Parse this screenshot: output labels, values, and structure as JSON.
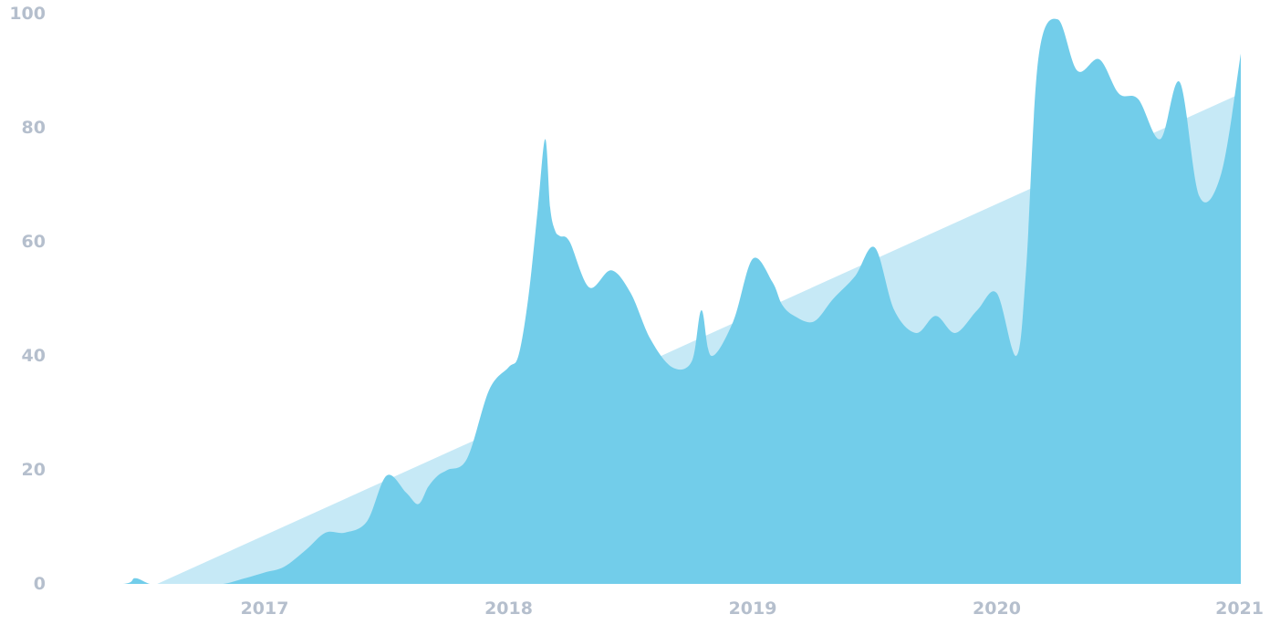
{
  "chart_data": {
    "type": "area",
    "title": "",
    "xlabel": "",
    "ylabel": "",
    "grid": false,
    "legend": "none",
    "xlim": [
      2016.17,
      2021.0
    ],
    "ylim": [
      0,
      100
    ],
    "x_ticks": [
      {
        "value": 2017,
        "label": "2017"
      },
      {
        "value": 2018,
        "label": "2018"
      },
      {
        "value": 2019,
        "label": "2019"
      },
      {
        "value": 2020,
        "label": "2020"
      },
      {
        "value": 2021,
        "label": "2021"
      }
    ],
    "y_ticks": [
      {
        "value": 0,
        "label": "0"
      },
      {
        "value": 20,
        "label": "20"
      },
      {
        "value": 40,
        "label": "40"
      },
      {
        "value": 60,
        "label": "60"
      },
      {
        "value": 80,
        "label": "80"
      },
      {
        "value": 100,
        "label": "100"
      }
    ],
    "series": [
      {
        "role": "trend",
        "color": "#c6e9f6",
        "x": [
          2016.56,
          2021.0
        ],
        "y": [
          0,
          86
        ]
      },
      {
        "role": "values",
        "color": "#72cdea",
        "x": [
          2016.17,
          2016.42,
          2016.47,
          2016.53,
          2016.58,
          2016.67,
          2016.75,
          2016.83,
          2016.92,
          2017.0,
          2017.08,
          2017.17,
          2017.25,
          2017.33,
          2017.42,
          2017.5,
          2017.58,
          2017.63,
          2017.67,
          2017.71,
          2017.75,
          2017.83,
          2017.92,
          2018.0,
          2018.04,
          2018.08,
          2018.12,
          2018.15,
          2018.17,
          2018.19,
          2018.21,
          2018.25,
          2018.33,
          2018.42,
          2018.5,
          2018.58,
          2018.67,
          2018.75,
          2018.79,
          2018.83,
          2018.92,
          2019.0,
          2019.08,
          2019.12,
          2019.17,
          2019.25,
          2019.33,
          2019.42,
          2019.5,
          2019.58,
          2019.67,
          2019.75,
          2019.83,
          2019.92,
          2020.0,
          2020.08,
          2020.12,
          2020.17,
          2020.25,
          2020.33,
          2020.42,
          2020.5,
          2020.58,
          2020.67,
          2020.75,
          2020.83,
          2020.92,
          2021.0
        ],
        "y": [
          0,
          0,
          1,
          0,
          0,
          0,
          0,
          0,
          1,
          2,
          3,
          6,
          9,
          9,
          11,
          19,
          16,
          14,
          17,
          19,
          20,
          22,
          34,
          38,
          40,
          50,
          66,
          78,
          66,
          62,
          61,
          60,
          52,
          55,
          51,
          43,
          38,
          39,
          48,
          40,
          46,
          57,
          53,
          49,
          47,
          46,
          50,
          54,
          59,
          48,
          44,
          47,
          44,
          48,
          51,
          40,
          55,
          92,
          99,
          90,
          92,
          86,
          85,
          78,
          88,
          68,
          72,
          93
        ]
      }
    ]
  }
}
